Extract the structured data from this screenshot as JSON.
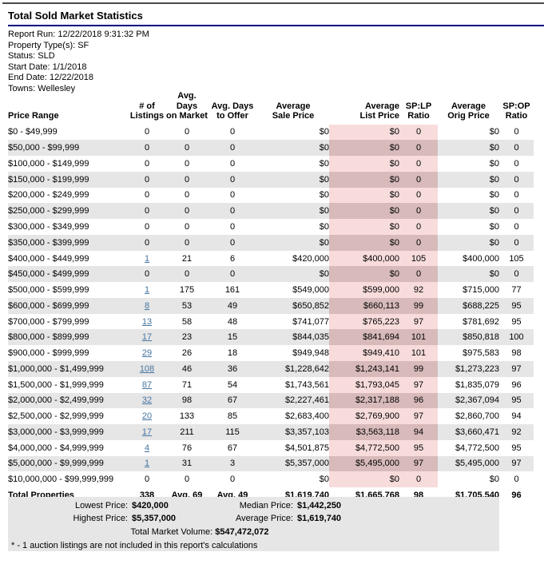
{
  "page": {
    "title": "Total Sold Market Statistics"
  },
  "report_info": {
    "lines": [
      "Report Run: 12/22/2018 9:31:32 PM",
      "Property Type(s): SF",
      "Status: SLD",
      "Start Date: 1/1/2018",
      "End Date: 12/22/2018",
      "Towns: Wellesley"
    ]
  },
  "colors": {
    "highlight_light": "#f8dcdc",
    "highlight_dark": "#d8baba",
    "zebra_row": "#e6e6e6",
    "link": "#4575a0",
    "title_rule": "#000080",
    "top_rule": "#4a4a4a",
    "summary_box": "#e6e6e6"
  },
  "table": {
    "columns": [
      "Price Range",
      "# of\nListings",
      "Avg. Days\non Market",
      "Avg. Days\nto Offer",
      "Average\nSale Price",
      "Average\nList Price",
      "SP:LP\nRatio",
      "Average\nOrig Price",
      "SP:OP\nRatio"
    ],
    "rows": [
      {
        "price_range": "$0 - $49,999",
        "listings": "0",
        "listings_link": false,
        "days_on_market": "0",
        "days_to_offer": "0",
        "avg_sale_price": "$0",
        "avg_list_price": "$0",
        "sp_lp_ratio": "0",
        "avg_orig_price": "$0",
        "sp_op_ratio": "0"
      },
      {
        "price_range": "$50,000 - $99,999",
        "listings": "0",
        "listings_link": false,
        "days_on_market": "0",
        "days_to_offer": "0",
        "avg_sale_price": "$0",
        "avg_list_price": "$0",
        "sp_lp_ratio": "0",
        "avg_orig_price": "$0",
        "sp_op_ratio": "0"
      },
      {
        "price_range": "$100,000 - $149,999",
        "listings": "0",
        "listings_link": false,
        "days_on_market": "0",
        "days_to_offer": "0",
        "avg_sale_price": "$0",
        "avg_list_price": "$0",
        "sp_lp_ratio": "0",
        "avg_orig_price": "$0",
        "sp_op_ratio": "0"
      },
      {
        "price_range": "$150,000 - $199,999",
        "listings": "0",
        "listings_link": false,
        "days_on_market": "0",
        "days_to_offer": "0",
        "avg_sale_price": "$0",
        "avg_list_price": "$0",
        "sp_lp_ratio": "0",
        "avg_orig_price": "$0",
        "sp_op_ratio": "0"
      },
      {
        "price_range": "$200,000 - $249,999",
        "listings": "0",
        "listings_link": false,
        "days_on_market": "0",
        "days_to_offer": "0",
        "avg_sale_price": "$0",
        "avg_list_price": "$0",
        "sp_lp_ratio": "0",
        "avg_orig_price": "$0",
        "sp_op_ratio": "0"
      },
      {
        "price_range": "$250,000 - $299,999",
        "listings": "0",
        "listings_link": false,
        "days_on_market": "0",
        "days_to_offer": "0",
        "avg_sale_price": "$0",
        "avg_list_price": "$0",
        "sp_lp_ratio": "0",
        "avg_orig_price": "$0",
        "sp_op_ratio": "0"
      },
      {
        "price_range": "$300,000 - $349,999",
        "listings": "0",
        "listings_link": false,
        "days_on_market": "0",
        "days_to_offer": "0",
        "avg_sale_price": "$0",
        "avg_list_price": "$0",
        "sp_lp_ratio": "0",
        "avg_orig_price": "$0",
        "sp_op_ratio": "0"
      },
      {
        "price_range": "$350,000 - $399,999",
        "listings": "0",
        "listings_link": false,
        "days_on_market": "0",
        "days_to_offer": "0",
        "avg_sale_price": "$0",
        "avg_list_price": "$0",
        "sp_lp_ratio": "0",
        "avg_orig_price": "$0",
        "sp_op_ratio": "0"
      },
      {
        "price_range": "$400,000 - $449,999",
        "listings": "1",
        "listings_link": true,
        "days_on_market": "21",
        "days_to_offer": "6",
        "avg_sale_price": "$420,000",
        "avg_list_price": "$400,000",
        "sp_lp_ratio": "105",
        "avg_orig_price": "$400,000",
        "sp_op_ratio": "105"
      },
      {
        "price_range": "$450,000 - $499,999",
        "listings": "0",
        "listings_link": false,
        "days_on_market": "0",
        "days_to_offer": "0",
        "avg_sale_price": "$0",
        "avg_list_price": "$0",
        "sp_lp_ratio": "0",
        "avg_orig_price": "$0",
        "sp_op_ratio": "0"
      },
      {
        "price_range": "$500,000 - $599,999",
        "listings": "1",
        "listings_link": true,
        "days_on_market": "175",
        "days_to_offer": "161",
        "avg_sale_price": "$549,000",
        "avg_list_price": "$599,000",
        "sp_lp_ratio": "92",
        "avg_orig_price": "$715,000",
        "sp_op_ratio": "77"
      },
      {
        "price_range": "$600,000 - $699,999",
        "listings": "8",
        "listings_link": true,
        "days_on_market": "53",
        "days_to_offer": "49",
        "avg_sale_price": "$650,852",
        "avg_list_price": "$660,113",
        "sp_lp_ratio": "99",
        "avg_orig_price": "$688,225",
        "sp_op_ratio": "95"
      },
      {
        "price_range": "$700,000 - $799,999",
        "listings": "13",
        "listings_link": true,
        "days_on_market": "58",
        "days_to_offer": "48",
        "avg_sale_price": "$741,077",
        "avg_list_price": "$765,223",
        "sp_lp_ratio": "97",
        "avg_orig_price": "$781,692",
        "sp_op_ratio": "95"
      },
      {
        "price_range": "$800,000 - $899,999",
        "listings": "17",
        "listings_link": true,
        "days_on_market": "23",
        "days_to_offer": "15",
        "avg_sale_price": "$844,035",
        "avg_list_price": "$841,694",
        "sp_lp_ratio": "101",
        "avg_orig_price": "$850,818",
        "sp_op_ratio": "100"
      },
      {
        "price_range": "$900,000 - $999,999",
        "listings": "29",
        "listings_link": true,
        "days_on_market": "26",
        "days_to_offer": "18",
        "avg_sale_price": "$949,948",
        "avg_list_price": "$949,410",
        "sp_lp_ratio": "101",
        "avg_orig_price": "$975,583",
        "sp_op_ratio": "98"
      },
      {
        "price_range": "$1,000,000 - $1,499,999",
        "listings": "108",
        "listings_link": true,
        "days_on_market": "46",
        "days_to_offer": "36",
        "avg_sale_price": "$1,228,642",
        "avg_list_price": "$1,243,141",
        "sp_lp_ratio": "99",
        "avg_orig_price": "$1,273,223",
        "sp_op_ratio": "97"
      },
      {
        "price_range": "$1,500,000 - $1,999,999",
        "listings": "87",
        "listings_link": true,
        "days_on_market": "71",
        "days_to_offer": "54",
        "avg_sale_price": "$1,743,561",
        "avg_list_price": "$1,793,045",
        "sp_lp_ratio": "97",
        "avg_orig_price": "$1,835,079",
        "sp_op_ratio": "96"
      },
      {
        "price_range": "$2,000,000 - $2,499,999",
        "listings": "32",
        "listings_link": true,
        "days_on_market": "98",
        "days_to_offer": "67",
        "avg_sale_price": "$2,227,461",
        "avg_list_price": "$2,317,188",
        "sp_lp_ratio": "96",
        "avg_orig_price": "$2,367,094",
        "sp_op_ratio": "95"
      },
      {
        "price_range": "$2,500,000 - $2,999,999",
        "listings": "20",
        "listings_link": true,
        "days_on_market": "133",
        "days_to_offer": "85",
        "avg_sale_price": "$2,683,400",
        "avg_list_price": "$2,769,900",
        "sp_lp_ratio": "97",
        "avg_orig_price": "$2,860,700",
        "sp_op_ratio": "94"
      },
      {
        "price_range": "$3,000,000 - $3,999,999",
        "listings": "17",
        "listings_link": true,
        "days_on_market": "211",
        "days_to_offer": "115",
        "avg_sale_price": "$3,357,103",
        "avg_list_price": "$3,563,118",
        "sp_lp_ratio": "94",
        "avg_orig_price": "$3,660,471",
        "sp_op_ratio": "92"
      },
      {
        "price_range": "$4,000,000 - $4,999,999",
        "listings": "4",
        "listings_link": true,
        "days_on_market": "76",
        "days_to_offer": "67",
        "avg_sale_price": "$4,501,875",
        "avg_list_price": "$4,772,500",
        "sp_lp_ratio": "95",
        "avg_orig_price": "$4,772,500",
        "sp_op_ratio": "95"
      },
      {
        "price_range": "$5,000,000 - $9,999,999",
        "listings": "1",
        "listings_link": true,
        "days_on_market": "31",
        "days_to_offer": "3",
        "avg_sale_price": "$5,357,000",
        "avg_list_price": "$5,495,000",
        "sp_lp_ratio": "97",
        "avg_orig_price": "$5,495,000",
        "sp_op_ratio": "97"
      },
      {
        "price_range": "$10,000,000 - $99,999,999",
        "listings": "0",
        "listings_link": false,
        "days_on_market": "0",
        "days_to_offer": "0",
        "avg_sale_price": "$0",
        "avg_list_price": "$0",
        "sp_lp_ratio": "0",
        "avg_orig_price": "$0",
        "sp_op_ratio": "0"
      }
    ],
    "total_row": {
      "price_range": "Total Properties",
      "listings": "338",
      "listings_link": false,
      "days_on_market": "Avg. 69",
      "days_to_offer": "Avg. 49",
      "avg_sale_price": "$1,619,740",
      "avg_list_price": "$1,665,768",
      "sp_lp_ratio": "98",
      "avg_orig_price": "$1,705,540",
      "sp_op_ratio": "96"
    }
  },
  "summary": {
    "items": [
      {
        "label": "Lowest Price:",
        "value": "$420,000"
      },
      {
        "label": "Median Price:",
        "value": "$1,442,250"
      },
      {
        "label": "Highest Price:",
        "value": "$5,357,000"
      },
      {
        "label": "Average Price:",
        "value": "$1,619,740"
      }
    ],
    "total_label": "Total Market Volume:",
    "total_value": "$547,472,072",
    "note": "* - 1 auction listings are not included in this report's calculations"
  }
}
